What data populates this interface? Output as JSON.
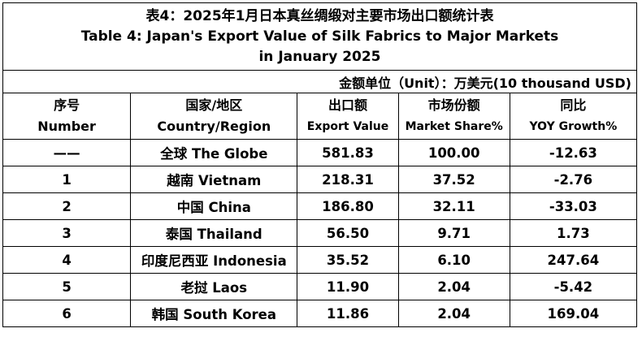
{
  "title": {
    "cn": "表4：2025年1月日本真丝绸缎对主要市场出口额统计表",
    "en_line1": "Table 4: Japan's Export Value of Silk Fabrics to Major Markets",
    "en_line2": "in January 2025"
  },
  "unit": "金额单位（Unit）：万美元(10 thousand USD)",
  "headers": [
    {
      "cn": "序号",
      "en": "Number"
    },
    {
      "cn": "国家/地区",
      "en": "Country/Region"
    },
    {
      "cn": "出口额",
      "en": "Export Value"
    },
    {
      "cn": "市场份额",
      "en": "Market Share%"
    },
    {
      "cn": "同比",
      "en": "YOY Growth%"
    }
  ],
  "rows": [
    {
      "number": "——",
      "country": "全球 The Globe",
      "export_value": "581.83",
      "market_share": "100.00",
      "yoy_growth": "-12.63"
    },
    {
      "number": "1",
      "country": "越南 Vietnam",
      "export_value": "218.31",
      "market_share": "37.52",
      "yoy_growth": "-2.76"
    },
    {
      "number": "2",
      "country": "中国 China",
      "export_value": "186.80",
      "market_share": "32.11",
      "yoy_growth": "-33.03"
    },
    {
      "number": "3",
      "country": "泰国 Thailand",
      "export_value": "56.50",
      "market_share": "9.71",
      "yoy_growth": "1.73"
    },
    {
      "number": "4",
      "country": "印度尼西亚 Indonesia",
      "export_value": "35.52",
      "market_share": "6.10",
      "yoy_growth": "247.64"
    },
    {
      "number": "5",
      "country": "老挝 Laos",
      "export_value": "11.90",
      "market_share": "2.04",
      "yoy_growth": "-5.42"
    },
    {
      "number": "6",
      "country": "韩国 South Korea",
      "export_value": "11.86",
      "market_share": "2.04",
      "yoy_growth": "169.04"
    }
  ]
}
